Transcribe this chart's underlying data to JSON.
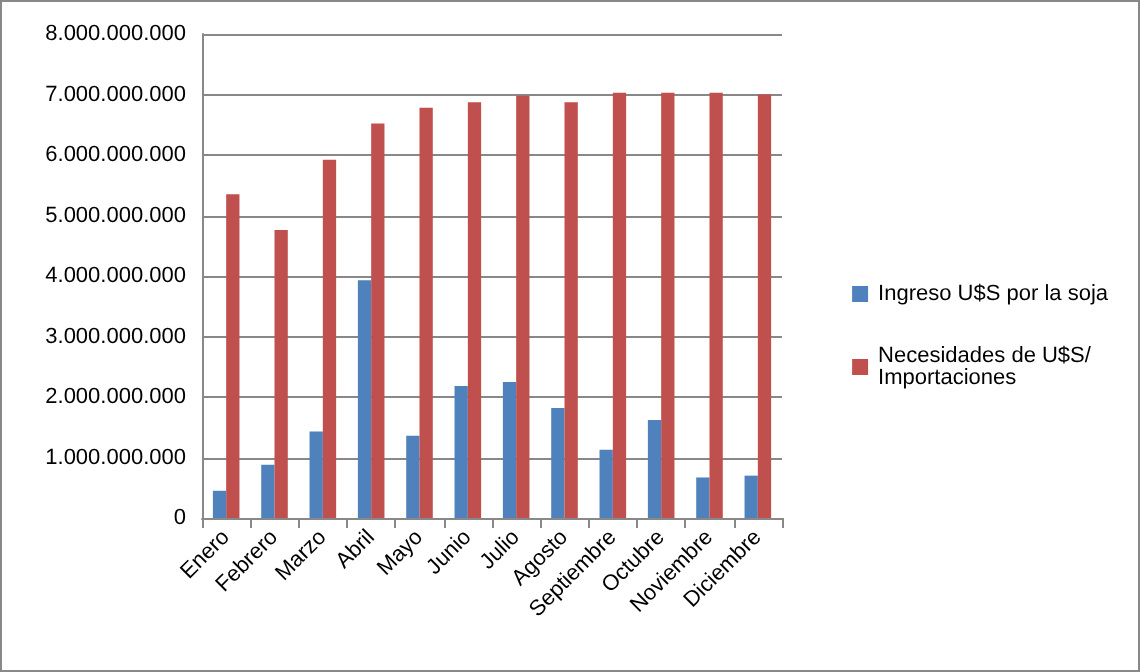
{
  "chart_data": {
    "type": "bar",
    "categories": [
      "Enero",
      "Febrero",
      "Marzo",
      "Abril",
      "Mayo",
      "Junio",
      "Julio",
      "Agosto",
      "Septiembre",
      "Octubre",
      "Noviembre",
      "Diciembre"
    ],
    "series": [
      {
        "name": "Ingreso U$S por la soja",
        "color": "#4f81bd",
        "values": [
          450000000,
          880000000,
          1430000000,
          3930000000,
          1360000000,
          2180000000,
          2250000000,
          1820000000,
          1130000000,
          1620000000,
          670000000,
          700000000
        ]
      },
      {
        "name": "Necesidades de U$S/Importaciones",
        "color": "#c0504d",
        "values": [
          5350000000,
          4760000000,
          5920000000,
          6520000000,
          6780000000,
          6870000000,
          6980000000,
          6870000000,
          7030000000,
          7030000000,
          7030000000,
          7000000000
        ]
      }
    ],
    "ylim": [
      0,
      8000000000
    ],
    "yticks": [
      0,
      {
        "value": 1000000000,
        "label": "1.000.000.000"
      },
      {
        "value": 2000000000,
        "label": "2.000.000.000"
      },
      {
        "value": 3000000000,
        "label": "3.000.000.000"
      },
      {
        "value": 4000000000,
        "label": "4.000.000.000"
      },
      {
        "value": 5000000000,
        "label": "5.000.000.000"
      },
      {
        "value": 6000000000,
        "label": "6.000.000.000"
      },
      {
        "value": 7000000000,
        "label": "7.000.000.000"
      },
      {
        "value": 8000000000,
        "label": "8.000.000.000"
      }
    ],
    "grid": "y",
    "legend": "right"
  }
}
